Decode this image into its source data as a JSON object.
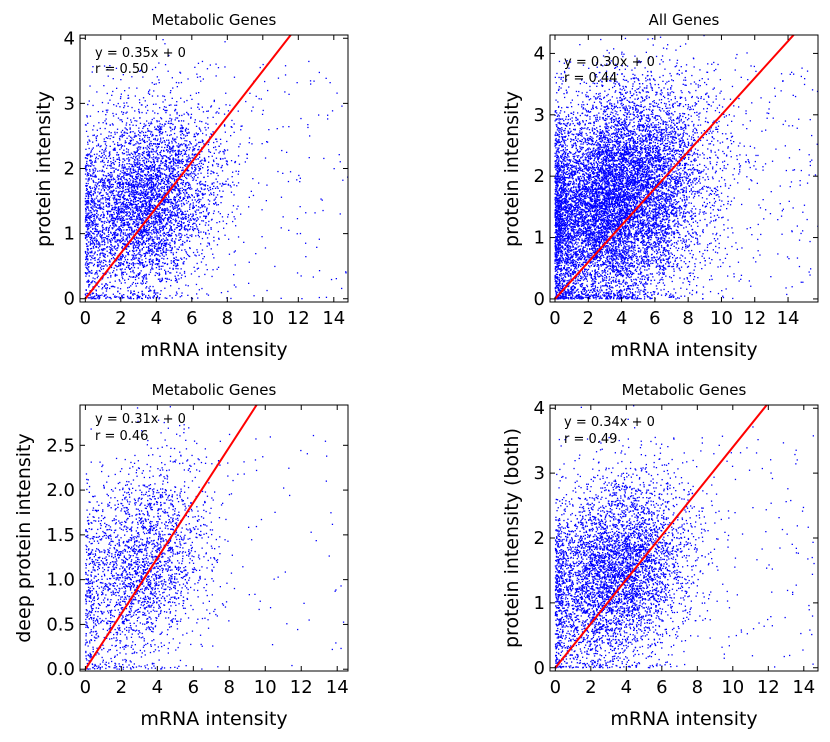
{
  "chart_data": [
    {
      "type": "scatter",
      "title": "Metabolic Genes",
      "xlabel": "mRNA intensity",
      "ylabel": "protein intensity",
      "xlim": [
        -0.3,
        14.8
      ],
      "ylim": [
        -0.05,
        4.05
      ],
      "xticks": [
        "0",
        "2",
        "4",
        "6",
        "8",
        "10",
        "12",
        "14"
      ],
      "xtick_values": [
        0,
        2,
        4,
        6,
        8,
        10,
        12,
        14
      ],
      "yticks": [
        "0",
        "1",
        "2",
        "3",
        "4"
      ],
      "ytick_values": [
        0,
        1,
        2,
        3,
        4
      ],
      "fit": {
        "slope": 0.35,
        "intercept": 0,
        "equation": "y = 0.35x + 0",
        "r_text": "r = 0.50"
      },
      "points": {
        "count": 5200,
        "x_center": 3.3,
        "x_spread": 2.1,
        "y_center": 1.45,
        "y_spread": 0.7,
        "color": "#0000ff"
      }
    },
    {
      "type": "scatter",
      "title": "All Genes",
      "xlabel": "mRNA intensity",
      "ylabel": "protein intensity",
      "xlim": [
        -0.3,
        15.8
      ],
      "ylim": [
        -0.05,
        4.3
      ],
      "xticks": [
        "0",
        "2",
        "4",
        "6",
        "8",
        "10",
        "12",
        "14"
      ],
      "xtick_values": [
        0,
        2,
        4,
        6,
        8,
        10,
        12,
        14
      ],
      "yticks": [
        "0",
        "1",
        "2",
        "3",
        "4"
      ],
      "ytick_values": [
        0,
        1,
        2,
        3,
        4
      ],
      "fit": {
        "slope": 0.3,
        "intercept": 0,
        "equation": "y = 0.30x + 0",
        "r_text": "r = 0.44"
      },
      "points": {
        "count": 11000,
        "x_center": 3.6,
        "x_spread": 2.7,
        "y_center": 1.6,
        "y_spread": 0.85,
        "color": "#0000ff"
      }
    },
    {
      "type": "scatter",
      "title": "Metabolic Genes",
      "xlabel": "mRNA intensity",
      "ylabel": "deep protein intensity",
      "xlim": [
        -0.3,
        14.6
      ],
      "ylim": [
        -0.02,
        2.95
      ],
      "xticks": [
        "0",
        "2",
        "4",
        "6",
        "8",
        "10",
        "12",
        "14"
      ],
      "xtick_values": [
        0,
        2,
        4,
        6,
        8,
        10,
        12,
        14
      ],
      "yticks": [
        "0.0",
        "0.5",
        "1.0",
        "1.5",
        "2.0",
        "2.5"
      ],
      "ytick_values": [
        0,
        0.5,
        1.0,
        1.5,
        2.0,
        2.5
      ],
      "fit": {
        "slope": 0.31,
        "intercept": 0,
        "equation": "y = 0.31x + 0",
        "r_text": "r = 0.46"
      },
      "points": {
        "count": 2600,
        "x_center": 3.0,
        "x_spread": 2.0,
        "y_center": 1.15,
        "y_spread": 0.55,
        "color": "#0000ff"
      }
    },
    {
      "type": "scatter",
      "title": "Metabolic Genes",
      "xlabel": "mRNA intensity",
      "ylabel": "protein intensity (both)",
      "xlim": [
        -0.3,
        14.8
      ],
      "ylim": [
        -0.05,
        4.05
      ],
      "xticks": [
        "0",
        "2",
        "4",
        "6",
        "8",
        "10",
        "12",
        "14"
      ],
      "xtick_values": [
        0,
        2,
        4,
        6,
        8,
        10,
        12,
        14
      ],
      "yticks": [
        "0",
        "1",
        "2",
        "3",
        "4"
      ],
      "ytick_values": [
        0,
        1,
        2,
        3,
        4
      ],
      "fit": {
        "slope": 0.34,
        "intercept": 0,
        "equation": "y = 0.34x + 0",
        "r_text": "r = 0.49"
      },
      "points": {
        "count": 5200,
        "x_center": 3.3,
        "x_spread": 2.1,
        "y_center": 1.45,
        "y_spread": 0.7,
        "color": "#0000ff"
      }
    }
  ]
}
